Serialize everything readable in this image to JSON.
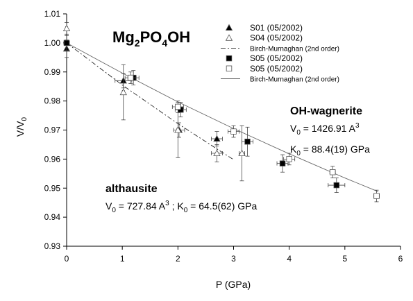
{
  "chart_data": {
    "type": "scatter",
    "xlabel": "P (GPa)",
    "ylabel": "V/V",
    "ylabel_sub": "0",
    "title": {
      "main": "Mg",
      "s1": "2",
      "mid": "PO",
      "s2": "4",
      "end": "OH"
    },
    "xlim": [
      0,
      6
    ],
    "ylim": [
      0.93,
      1.01
    ],
    "x_ticks": [
      "0",
      "1",
      "2",
      "3",
      "4",
      "5",
      "6"
    ],
    "y_ticks": [
      "0.93",
      "0.94",
      "0.95",
      "0.96",
      "0.97",
      "0.98",
      "0.99",
      "1.00",
      "1.01"
    ],
    "legend_position": "top-right",
    "series": [
      {
        "name": "S01 (05/2002)",
        "marker": "filled-triangle",
        "points": [
          [
            0.0,
            0.998,
            0.002,
            0.003
          ],
          [
            1.02,
            0.987,
            0.15,
            0.0025
          ],
          [
            2.02,
            0.97,
            0.1,
            0.0025
          ],
          [
            2.7,
            0.967,
            0.1,
            0.0025
          ]
        ]
      },
      {
        "name": "S04 (05/2002)",
        "marker": "open-triangle",
        "points": [
          [
            0.0,
            1.005,
            0.02,
            0.002
          ],
          [
            1.02,
            0.983,
            0.02,
            0.0095
          ],
          [
            2.0,
            0.97,
            0.02,
            0.0095
          ],
          [
            2.7,
            0.962,
            0.1,
            0.003
          ],
          [
            3.15,
            0.962,
            0.05,
            0.0095
          ]
        ]
      },
      {
        "name": "Birch-Murnaghan (2nd order)",
        "line": "dash-dot",
        "points": [
          [
            0.0,
            1.0
          ],
          [
            1.0,
            0.9855
          ],
          [
            2.0,
            0.9722
          ],
          [
            3.0,
            0.9598
          ]
        ]
      },
      {
        "name": "S05 (05/2002)",
        "marker": "filled-square",
        "points": [
          [
            0.0,
            1.0,
            0.05,
            0.0025
          ],
          [
            1.2,
            0.988,
            0.1,
            0.0025
          ],
          [
            2.05,
            0.977,
            0.1,
            0.0025
          ],
          [
            3.25,
            0.966,
            0.1,
            0.005
          ],
          [
            3.88,
            0.9585,
            0.1,
            0.003
          ],
          [
            4.85,
            0.951,
            0.15,
            0.0025
          ]
        ]
      },
      {
        "name": "S05 (05/2002)",
        "marker": "open-square",
        "points": [
          [
            1.15,
            0.988,
            0.1,
            0.002
          ],
          [
            2.0,
            0.978,
            0.1,
            0.002
          ],
          [
            3.0,
            0.9695,
            0.1,
            0.002
          ],
          [
            4.0,
            0.96,
            0.1,
            0.002
          ],
          [
            4.78,
            0.9555,
            0.05,
            0.002
          ],
          [
            5.57,
            0.9473,
            0.05,
            0.002
          ]
        ]
      },
      {
        "name": "Birch-Murnaghan (2nd order)",
        "line": "solid",
        "points": [
          [
            0.0,
            1.0
          ],
          [
            1.0,
            0.9896
          ],
          [
            2.0,
            0.9797
          ],
          [
            3.0,
            0.9705
          ],
          [
            4.0,
            0.9618
          ],
          [
            5.0,
            0.9535
          ],
          [
            5.6,
            0.9488
          ]
        ]
      }
    ],
    "annotations": {
      "wagnerite": {
        "name": "OH-wagnerite",
        "v0_lhs": "V",
        "v0_sub": "0",
        "v0_val": " = 1426.91 A",
        "v0_sup": "3",
        "k0_lhs": "K",
        "k0_sub": "0",
        "k0_val": " = 88.4(19) GPa"
      },
      "althausite": {
        "name": "althausite",
        "v0_lhs": "V",
        "v0_sub": "0",
        "v0_val": " = 727.84 A",
        "v0_sup": "3",
        "sep": " ; K",
        "k0_sub": "0",
        "k0_val": " = 64.5(62) GPa"
      }
    }
  }
}
